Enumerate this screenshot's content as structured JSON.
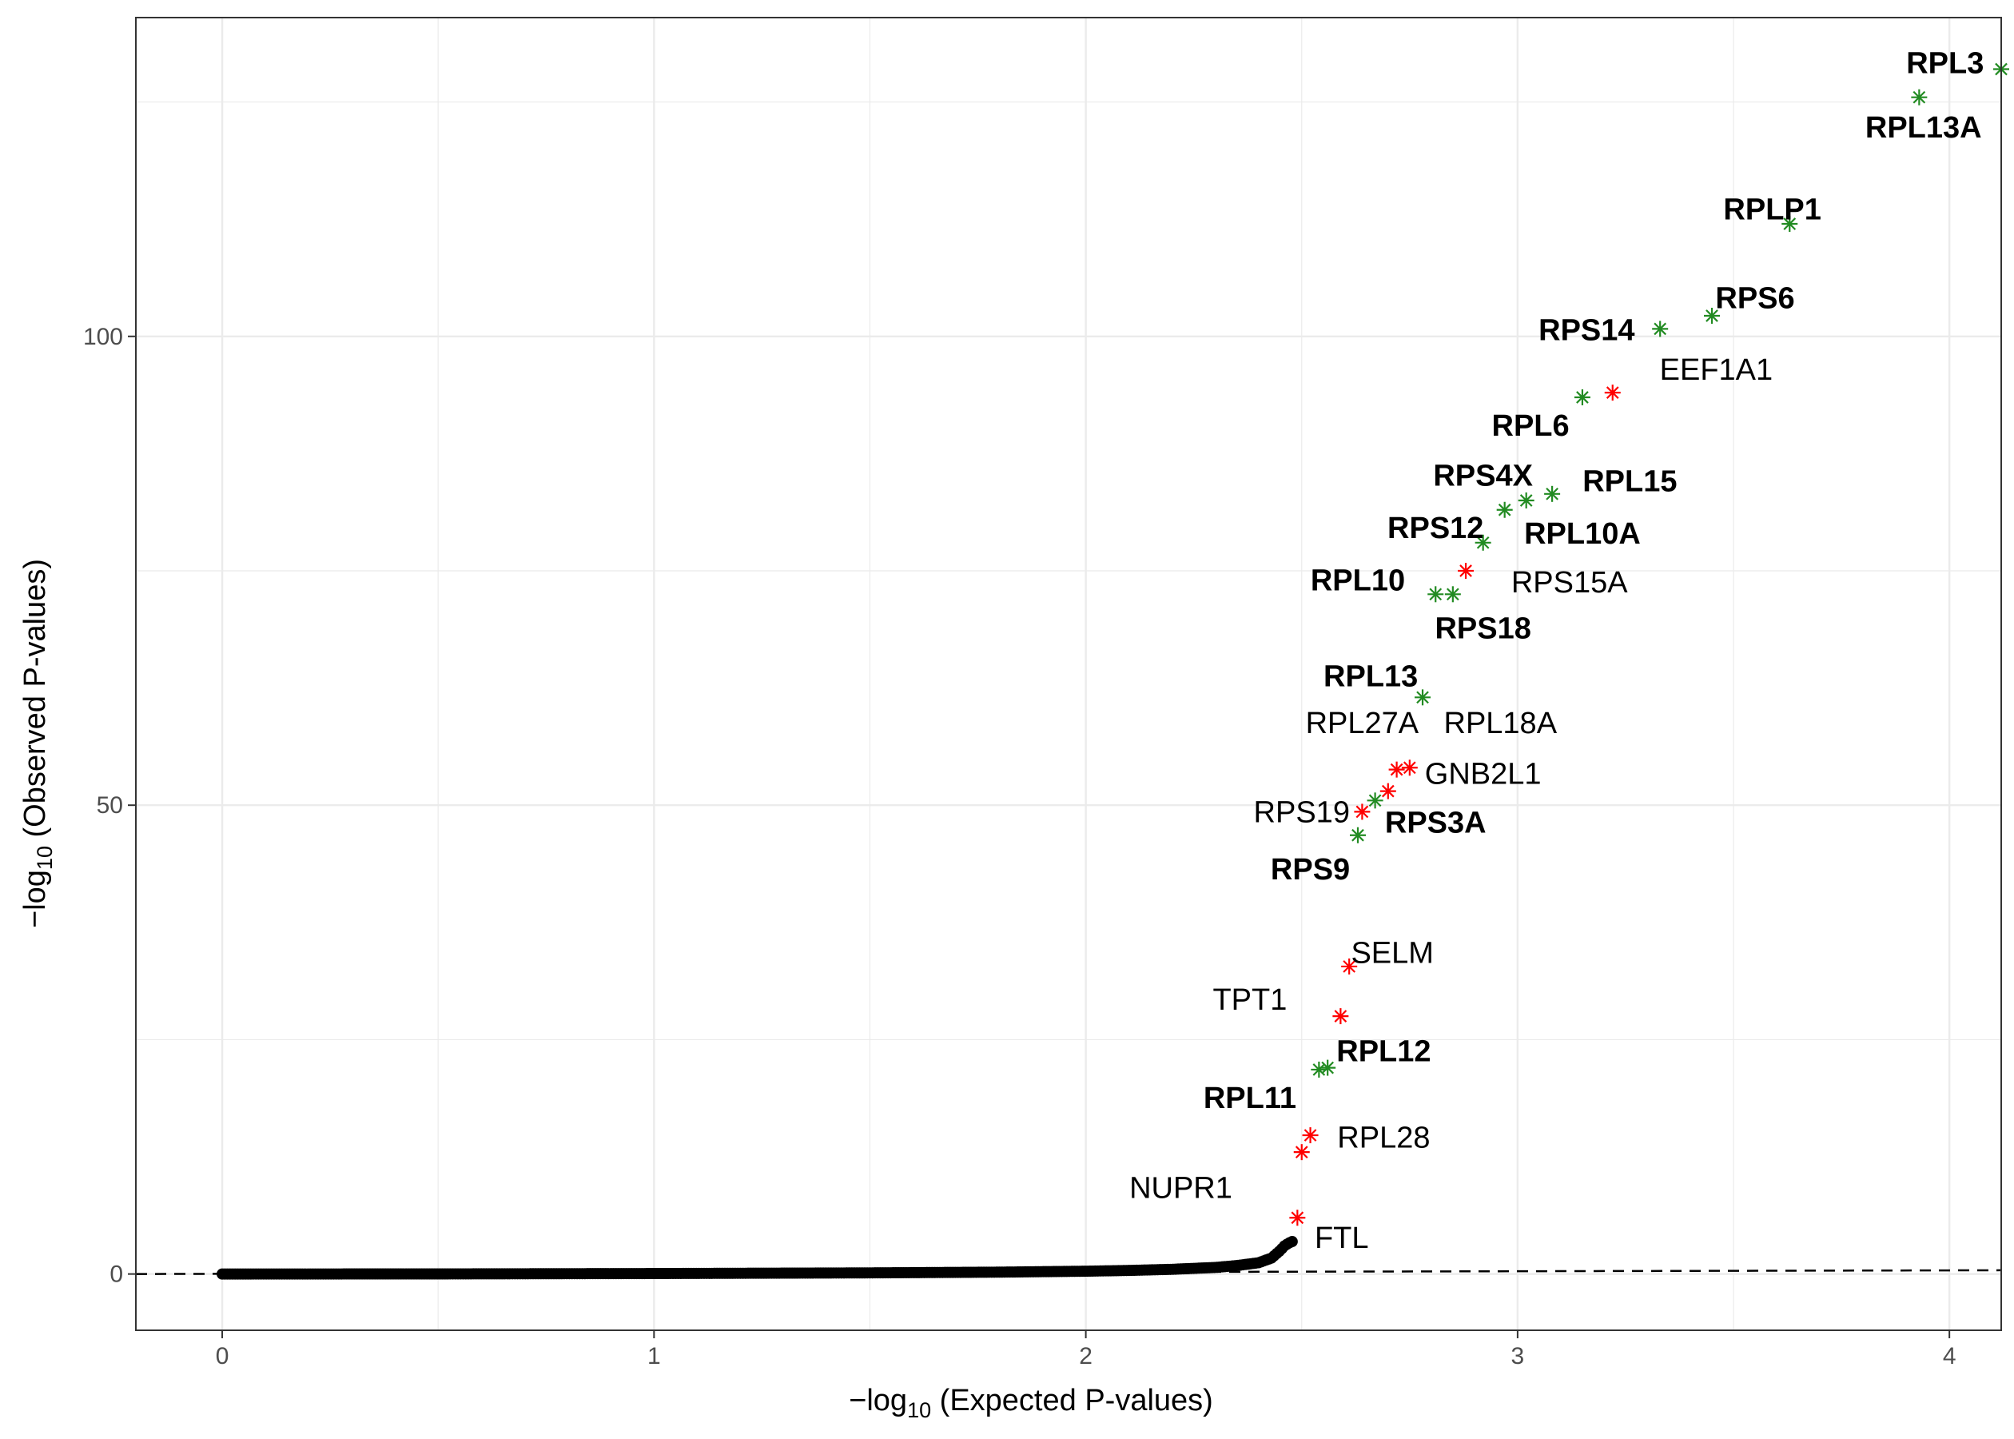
{
  "chart_data": {
    "type": "scatter",
    "xlabel_prefix": "−log",
    "xlabel_sub": "10",
    "xlabel_suffix": " (Expected P-values)",
    "ylabel_prefix": "−log",
    "ylabel_sub": "10",
    "ylabel_suffix": " (Observed P-values)",
    "xlim": [
      -0.2,
      4.12
    ],
    "ylim": [
      -6,
      134
    ],
    "x_ticks": [
      0,
      1,
      2,
      3,
      4
    ],
    "x_tick_labels": [
      "0",
      "1",
      "2",
      "3",
      "4"
    ],
    "y_ticks": [
      0,
      50,
      100
    ],
    "y_tick_labels": [
      "0",
      "50",
      "100"
    ],
    "grid": true,
    "legend": "none",
    "reference_line": {
      "style": "dashed",
      "from": [
        -0.2,
        0
      ],
      "to": [
        4.12,
        0.4
      ]
    },
    "background_curve": {
      "points": [
        [
          0,
          0
        ],
        [
          0.5,
          0.01
        ],
        [
          1.0,
          0.05
        ],
        [
          1.5,
          0.12
        ],
        [
          1.8,
          0.2
        ],
        [
          2.0,
          0.3
        ],
        [
          2.1,
          0.38
        ],
        [
          2.2,
          0.5
        ],
        [
          2.3,
          0.7
        ],
        [
          2.35,
          0.9
        ],
        [
          2.4,
          1.2
        ],
        [
          2.43,
          1.7
        ],
        [
          2.45,
          2.5
        ],
        [
          2.46,
          3.0
        ],
        [
          2.47,
          3.3
        ],
        [
          2.48,
          3.5
        ]
      ]
    },
    "colors": {
      "highlight_red": "#ff0000",
      "highlight_green": "#228b22",
      "background_points": "#000000"
    },
    "genes": [
      {
        "name": "RPL3",
        "x": 4.12,
        "y": 128.5,
        "color": "green",
        "bold": true,
        "lx": 4.08,
        "ly": 129.2,
        "anchor": "end"
      },
      {
        "name": "RPL13A",
        "x": 3.93,
        "y": 125.5,
        "color": "green",
        "bold": true,
        "lx": 3.94,
        "ly": 122.3,
        "anchor": "middle"
      },
      {
        "name": "RPLP1",
        "x": 3.63,
        "y": 112.0,
        "color": "green",
        "bold": true,
        "lx": 3.59,
        "ly": 113.6,
        "anchor": "middle"
      },
      {
        "name": "RPS6",
        "x": 3.45,
        "y": 102.2,
        "color": "green",
        "bold": true,
        "lx": 3.55,
        "ly": 104.1,
        "anchor": "middle"
      },
      {
        "name": "RPS14",
        "x": 3.33,
        "y": 100.8,
        "color": "green",
        "bold": true,
        "lx": 3.16,
        "ly": 100.7,
        "anchor": "middle"
      },
      {
        "name": "EEF1A1",
        "x": 3.22,
        "y": 94.0,
        "color": "red",
        "bold": false,
        "lx": 3.46,
        "ly": 96.5,
        "anchor": "middle"
      },
      {
        "name": "RPL6",
        "x": 3.15,
        "y": 93.5,
        "color": "green",
        "bold": true,
        "lx": 3.03,
        "ly": 90.5,
        "anchor": "middle"
      },
      {
        "name": "RPS4X",
        "x": 2.97,
        "y": 81.5,
        "color": "green",
        "bold": true,
        "lx": 2.92,
        "ly": 85.2,
        "anchor": "middle"
      },
      {
        "name": "RPL15",
        "x": 3.08,
        "y": 83.2,
        "color": "green",
        "bold": true,
        "lx": 3.26,
        "ly": 84.6,
        "anchor": "middle"
      },
      {
        "name": "RPS12",
        "x": 2.92,
        "y": 78.0,
        "color": "green",
        "bold": true,
        "lx": 2.81,
        "ly": 79.6,
        "anchor": "middle"
      },
      {
        "name": "RPL10A",
        "x": 3.02,
        "y": 82.5,
        "color": "green",
        "bold": true,
        "lx": 3.15,
        "ly": 79.0,
        "anchor": "middle"
      },
      {
        "name": "RPS15A",
        "x": 2.88,
        "y": 75.0,
        "color": "red",
        "bold": false,
        "lx": 3.12,
        "ly": 73.8,
        "anchor": "middle"
      },
      {
        "name": "RPL10",
        "x": 2.81,
        "y": 72.5,
        "color": "green",
        "bold": true,
        "lx": 2.63,
        "ly": 74.0,
        "anchor": "middle"
      },
      {
        "name": "RPS18",
        "x": 2.85,
        "y": 72.5,
        "color": "green",
        "bold": true,
        "lx": 2.92,
        "ly": 68.9,
        "anchor": "middle"
      },
      {
        "name": "RPL13",
        "x": 2.78,
        "y": 61.5,
        "color": "green",
        "bold": true,
        "lx": 2.66,
        "ly": 63.8,
        "anchor": "middle"
      },
      {
        "name": "RPL27A",
        "x": 2.72,
        "y": 53.8,
        "color": "red",
        "bold": false,
        "lx": 2.64,
        "ly": 58.8,
        "anchor": "middle"
      },
      {
        "name": "RPL18A",
        "x": 2.75,
        "y": 54.0,
        "color": "red",
        "bold": false,
        "lx": 2.96,
        "ly": 58.8,
        "anchor": "middle"
      },
      {
        "name": "GNB2L1",
        "x": 2.7,
        "y": 51.5,
        "color": "red",
        "bold": false,
        "lx": 2.92,
        "ly": 53.4,
        "anchor": "middle"
      },
      {
        "name": "RPS19",
        "x": 2.64,
        "y": 49.3,
        "color": "red",
        "bold": false,
        "lx": 2.5,
        "ly": 49.3,
        "anchor": "middle"
      },
      {
        "name": "RPS3A",
        "x": 2.67,
        "y": 50.5,
        "color": "green",
        "bold": true,
        "lx": 2.81,
        "ly": 48.2,
        "anchor": "middle"
      },
      {
        "name": "RPS9",
        "x": 2.63,
        "y": 46.8,
        "color": "green",
        "bold": true,
        "lx": 2.52,
        "ly": 43.2,
        "anchor": "middle"
      },
      {
        "name": "SELM",
        "x": 2.61,
        "y": 32.8,
        "color": "red",
        "bold": false,
        "lx": 2.71,
        "ly": 34.3,
        "anchor": "middle"
      },
      {
        "name": "TPT1",
        "x": 2.59,
        "y": 27.5,
        "color": "red",
        "bold": false,
        "lx": 2.38,
        "ly": 29.3,
        "anchor": "middle"
      },
      {
        "name": "RPL12",
        "x": 2.56,
        "y": 22.0,
        "color": "green",
        "bold": true,
        "lx": 2.69,
        "ly": 23.8,
        "anchor": "middle"
      },
      {
        "name": "RPL11",
        "x": 2.54,
        "y": 21.8,
        "color": "green",
        "bold": true,
        "lx": 2.38,
        "ly": 18.8,
        "anchor": "middle"
      },
      {
        "name": "RPL28",
        "x": 2.52,
        "y": 14.8,
        "color": "red",
        "bold": false,
        "lx": 2.69,
        "ly": 14.6,
        "anchor": "middle"
      },
      {
        "name": "NUPR1",
        "x": 2.5,
        "y": 13.0,
        "color": "red",
        "bold": false,
        "lx": 2.22,
        "ly": 9.2,
        "anchor": "middle"
      },
      {
        "name": "FTL",
        "x": 2.49,
        "y": 6.0,
        "color": "red",
        "bold": false,
        "lx": 2.53,
        "ly": 3.9,
        "anchor": "start"
      }
    ]
  }
}
